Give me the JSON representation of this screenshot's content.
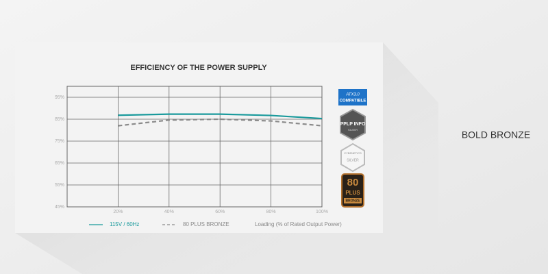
{
  "chart_data": {
    "type": "line",
    "title": "EFFICIENCY OF THE POWER SUPPLY",
    "x_label": "Loading (% of Rated Output Power)",
    "x": [
      20,
      40,
      60,
      80,
      100
    ],
    "series": [
      {
        "name": "115V / 60Hz",
        "color": "#1a9a9c",
        "line_style": "solid",
        "values": [
          86.8,
          87.3,
          87.3,
          86.7,
          85.3
        ]
      },
      {
        "name": "80 PLUS BRONZE",
        "color": "#8a8a8a",
        "line_style": "dashed",
        "values": [
          82,
          84.6,
          85,
          84.2,
          82
        ]
      }
    ],
    "xlim": [
      0,
      100
    ],
    "xticks": [
      {
        "value": 20,
        "label": "20%"
      },
      {
        "value": 40,
        "label": "40%"
      },
      {
        "value": 60,
        "label": "60%"
      },
      {
        "value": 80,
        "label": "80%"
      },
      {
        "value": 100,
        "label": "100%"
      }
    ],
    "ylim": [
      45,
      100
    ],
    "yticks": [
      {
        "value": 45,
        "label": "45%"
      },
      {
        "value": 55,
        "label": "55%"
      },
      {
        "value": 65,
        "label": "65%"
      },
      {
        "value": 75,
        "label": "75%"
      },
      {
        "value": 85,
        "label": "85%"
      },
      {
        "value": 95,
        "label": "95%"
      }
    ],
    "grid": true,
    "legend": "bottom"
  },
  "badges": {
    "atx": [
      "ATX3.0",
      "COMPATIBLE"
    ],
    "pplp": [
      "PPLP INFO",
      "SILVER"
    ],
    "cybenetics": [
      "CYBENETICS",
      "SILVER"
    ],
    "plus": [
      "80",
      "PLUS",
      "BRONZE"
    ]
  },
  "product_name": "BOLD BRONZE"
}
